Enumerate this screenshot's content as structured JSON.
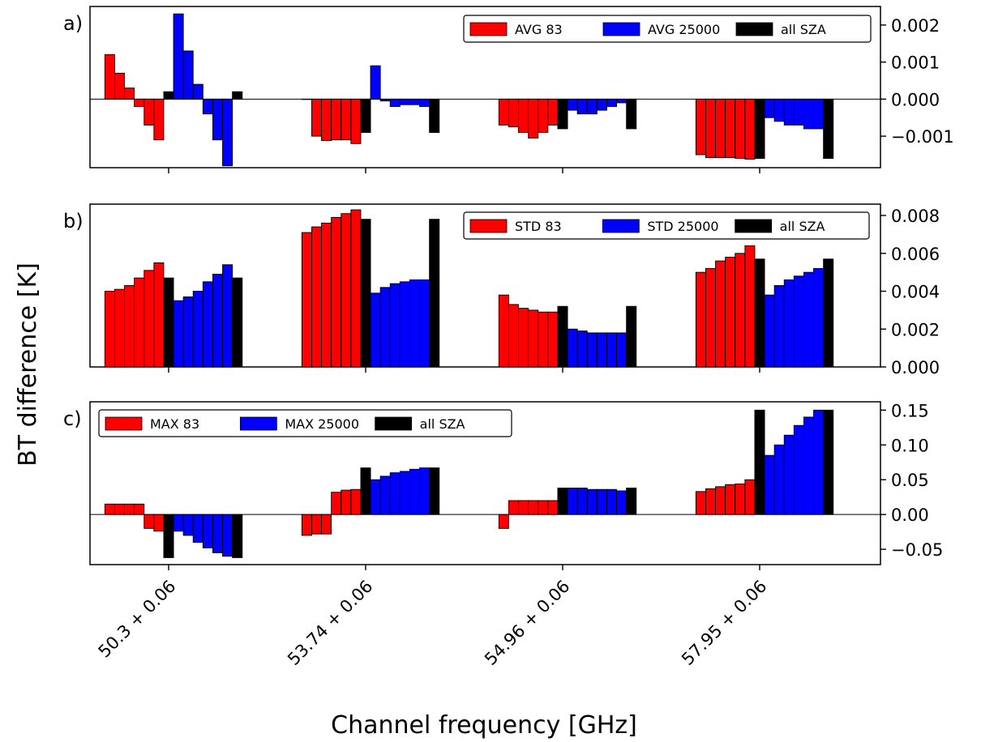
{
  "figure": {
    "ylabel": "BT difference [K]",
    "xlabel": "Channel frequency [GHz]",
    "xticks": [
      "50.3 + 0.06",
      "53.74 + 0.06",
      "54.96 + 0.06",
      "57.95 + 0.06"
    ]
  },
  "chart_data": [
    {
      "type": "bar",
      "panel": "a)",
      "legend_position": "top-right",
      "ylim": [
        -0.00185,
        0.0025
      ],
      "yticks": [
        -0.001,
        0.0,
        0.001,
        0.002
      ],
      "ytick_labels": [
        "−0.001",
        "0.000",
        "0.001",
        "0.002"
      ],
      "zero_line": true,
      "categories": [
        "50.3 + 0.06",
        "53.74 + 0.06",
        "54.96 + 0.06",
        "57.95 + 0.06"
      ],
      "series": [
        {
          "name": "AVG 83",
          "color": "#ff0000",
          "values": [
            [
              0.0012,
              0.0007,
              0.0003,
              -0.0002,
              -0.0007,
              -0.0011
            ],
            [
              -1e-05,
              -0.001,
              -0.00112,
              -0.0011,
              -0.0011,
              -0.0012
            ],
            [
              -0.0007,
              -0.00075,
              -0.0009,
              -0.00105,
              -0.0009,
              -0.0007
            ],
            [
              -0.0015,
              -0.00158,
              -0.00158,
              -0.00158,
              -0.0016,
              -0.00162
            ]
          ]
        },
        {
          "name": "AVG 25000",
          "color": "#0000ff",
          "values": [
            [
              0.0023,
              0.0013,
              0.0004,
              -0.0004,
              -0.0011,
              -0.0018
            ],
            [
              0.0009,
              -5e-05,
              -0.0002,
              -0.00015,
              -0.00015,
              -0.0002
            ],
            [
              -0.0003,
              -0.0004,
              -0.0004,
              -0.0003,
              -0.0002,
              -0.0001
            ],
            [
              -0.0005,
              -0.0006,
              -0.0007,
              -0.0007,
              -0.0008,
              -0.0008
            ]
          ]
        },
        {
          "name": "all SZA",
          "color": "#000000",
          "values": [
            0.0002,
            -0.0009,
            -0.0008,
            -0.0016
          ]
        }
      ]
    },
    {
      "type": "bar",
      "panel": "b)",
      "legend_position": "top-right",
      "ylim": [
        0,
        0.0086
      ],
      "yticks": [
        0,
        0.002,
        0.004,
        0.006,
        0.008
      ],
      "ytick_labels": [
        "0.000",
        "0.002",
        "0.004",
        "0.006",
        "0.008"
      ],
      "zero_line": false,
      "categories": [
        "50.3 + 0.06",
        "53.74 + 0.06",
        "54.96 + 0.06",
        "57.95 + 0.06"
      ],
      "series": [
        {
          "name": "STD 83",
          "color": "#ff0000",
          "values": [
            [
              0.004,
              0.0041,
              0.0043,
              0.0047,
              0.0051,
              0.0055
            ],
            [
              0.0071,
              0.0074,
              0.0076,
              0.0079,
              0.0081,
              0.0083
            ],
            [
              0.0038,
              0.0033,
              0.0031,
              0.003,
              0.0029,
              0.0029
            ],
            [
              0.005,
              0.0052,
              0.0056,
              0.0058,
              0.006,
              0.0064
            ]
          ]
        },
        {
          "name": "STD 25000",
          "color": "#0000ff",
          "values": [
            [
              0.0035,
              0.0037,
              0.004,
              0.0045,
              0.0049,
              0.0054
            ],
            [
              0.0039,
              0.0042,
              0.0044,
              0.0045,
              0.0046,
              0.0046
            ],
            [
              0.002,
              0.0019,
              0.0018,
              0.0018,
              0.0018,
              0.0018
            ],
            [
              0.0038,
              0.0043,
              0.0046,
              0.0048,
              0.005,
              0.0052
            ]
          ]
        },
        {
          "name": "all SZA",
          "color": "#000000",
          "values": [
            0.0047,
            0.0078,
            0.0032,
            0.0057
          ]
        }
      ]
    },
    {
      "type": "bar",
      "panel": "c)",
      "legend_position": "top-left",
      "ylim": [
        -0.072,
        0.162
      ],
      "yticks": [
        -0.05,
        0.0,
        0.05,
        0.1,
        0.15
      ],
      "ytick_labels": [
        "−0.05",
        "0.00",
        "0.05",
        "0.10",
        "0.15"
      ],
      "zero_line": true,
      "categories": [
        "50.3 + 0.06",
        "53.74 + 0.06",
        "54.96 + 0.06",
        "57.95 + 0.06"
      ],
      "series": [
        {
          "name": "MAX 83",
          "color": "#ff0000",
          "values": [
            [
              0.015,
              0.015,
              0.015,
              0.015,
              -0.02,
              -0.024
            ],
            [
              -0.03,
              -0.028,
              -0.028,
              0.032,
              0.035,
              0.036
            ],
            [
              -0.02,
              0.02,
              0.02,
              0.02,
              0.02,
              0.02
            ],
            [
              0.033,
              0.037,
              0.04,
              0.043,
              0.044,
              0.05
            ]
          ]
        },
        {
          "name": "MAX 25000",
          "color": "#0000ff",
          "values": [
            [
              -0.024,
              -0.03,
              -0.04,
              -0.048,
              -0.055,
              -0.06
            ],
            [
              0.05,
              0.055,
              0.06,
              0.062,
              0.065,
              0.067
            ],
            [
              0.038,
              0.038,
              0.036,
              0.036,
              0.036,
              0.034
            ],
            [
              0.085,
              0.1,
              0.114,
              0.128,
              0.14,
              0.15
            ]
          ]
        },
        {
          "name": "all SZA",
          "color": "#000000",
          "values": [
            -0.062,
            0.067,
            0.038,
            0.15
          ]
        }
      ]
    }
  ]
}
